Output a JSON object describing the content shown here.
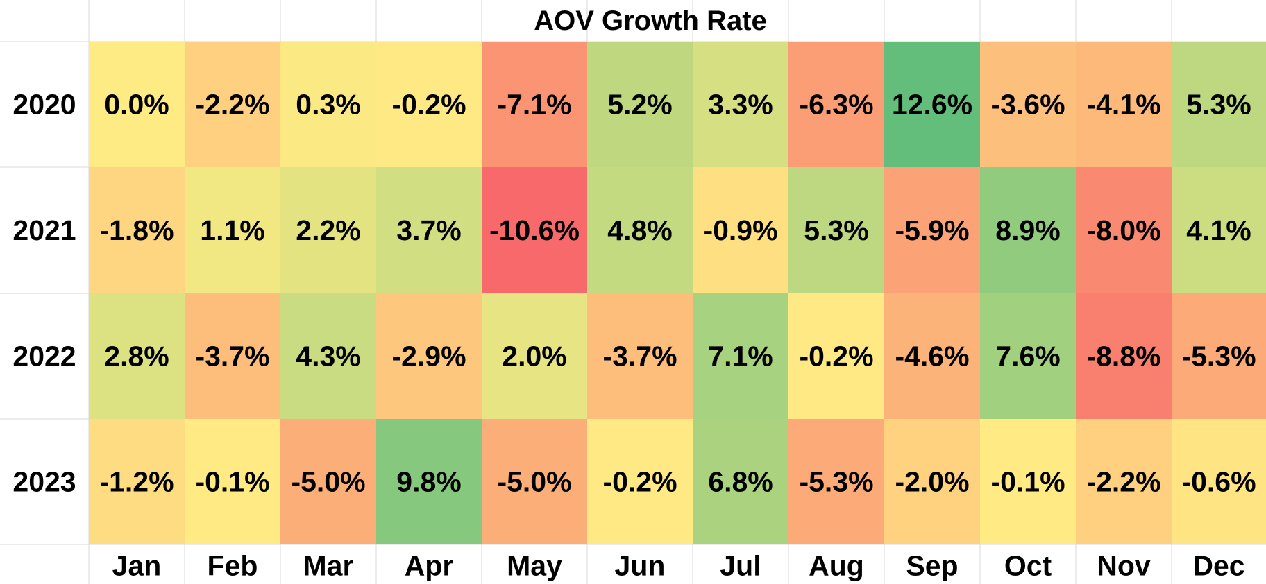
{
  "chart_data": {
    "type": "heatmap",
    "title": "AOV Growth Rate",
    "x_categories": [
      "Jan",
      "Feb",
      "Mar",
      "Apr",
      "May",
      "Jun",
      "Jul",
      "Aug",
      "Sep",
      "Oct",
      "Nov",
      "Dec"
    ],
    "y_categories": [
      "2020",
      "2021",
      "2022",
      "2023"
    ],
    "value_format": "percent_1dp",
    "values": [
      [
        0.0,
        -2.2,
        0.3,
        -0.2,
        -7.1,
        5.2,
        3.3,
        -6.3,
        12.6,
        -3.6,
        -4.1,
        5.3
      ],
      [
        -1.8,
        1.1,
        2.2,
        3.7,
        -10.6,
        4.8,
        -0.9,
        5.3,
        -5.9,
        8.9,
        -8.0,
        4.1
      ],
      [
        2.8,
        -3.7,
        4.3,
        -2.9,
        2.0,
        -3.7,
        7.1,
        -0.2,
        -4.6,
        7.6,
        -8.8,
        -5.3
      ],
      [
        -1.2,
        -0.1,
        -5.0,
        9.8,
        -5.0,
        -0.2,
        6.8,
        -5.3,
        -2.0,
        -0.1,
        -2.2,
        -0.6
      ]
    ],
    "labels": [
      [
        "0.0%",
        "-2.2%",
        "0.3%",
        "-0.2%",
        "-7.1%",
        "5.2%",
        "3.3%",
        "-6.3%",
        "12.6%",
        "-3.6%",
        "-4.1%",
        "5.3%"
      ],
      [
        "-1.8%",
        "1.1%",
        "2.2%",
        "3.7%",
        "-10.6%",
        "4.8%",
        "-0.9%",
        "5.3%",
        "-5.9%",
        "8.9%",
        "-8.0%",
        "4.1%"
      ],
      [
        "2.8%",
        "-3.7%",
        "4.3%",
        "-2.9%",
        "2.0%",
        "-3.7%",
        "7.1%",
        "-0.2%",
        "-4.6%",
        "7.6%",
        "-8.8%",
        "-5.3%"
      ],
      [
        "-1.2%",
        "-0.1%",
        "-5.0%",
        "9.8%",
        "-5.0%",
        "-0.2%",
        "6.8%",
        "-5.3%",
        "-2.0%",
        "-0.1%",
        "-2.2%",
        "-0.6%"
      ]
    ],
    "color_scale": {
      "min": -10.6,
      "mid": 0.0,
      "max": 12.6,
      "min_color": "#f8696b",
      "mid_color": "#ffeb84",
      "max_color": "#63be7b"
    },
    "grid": true,
    "legend": "none"
  }
}
